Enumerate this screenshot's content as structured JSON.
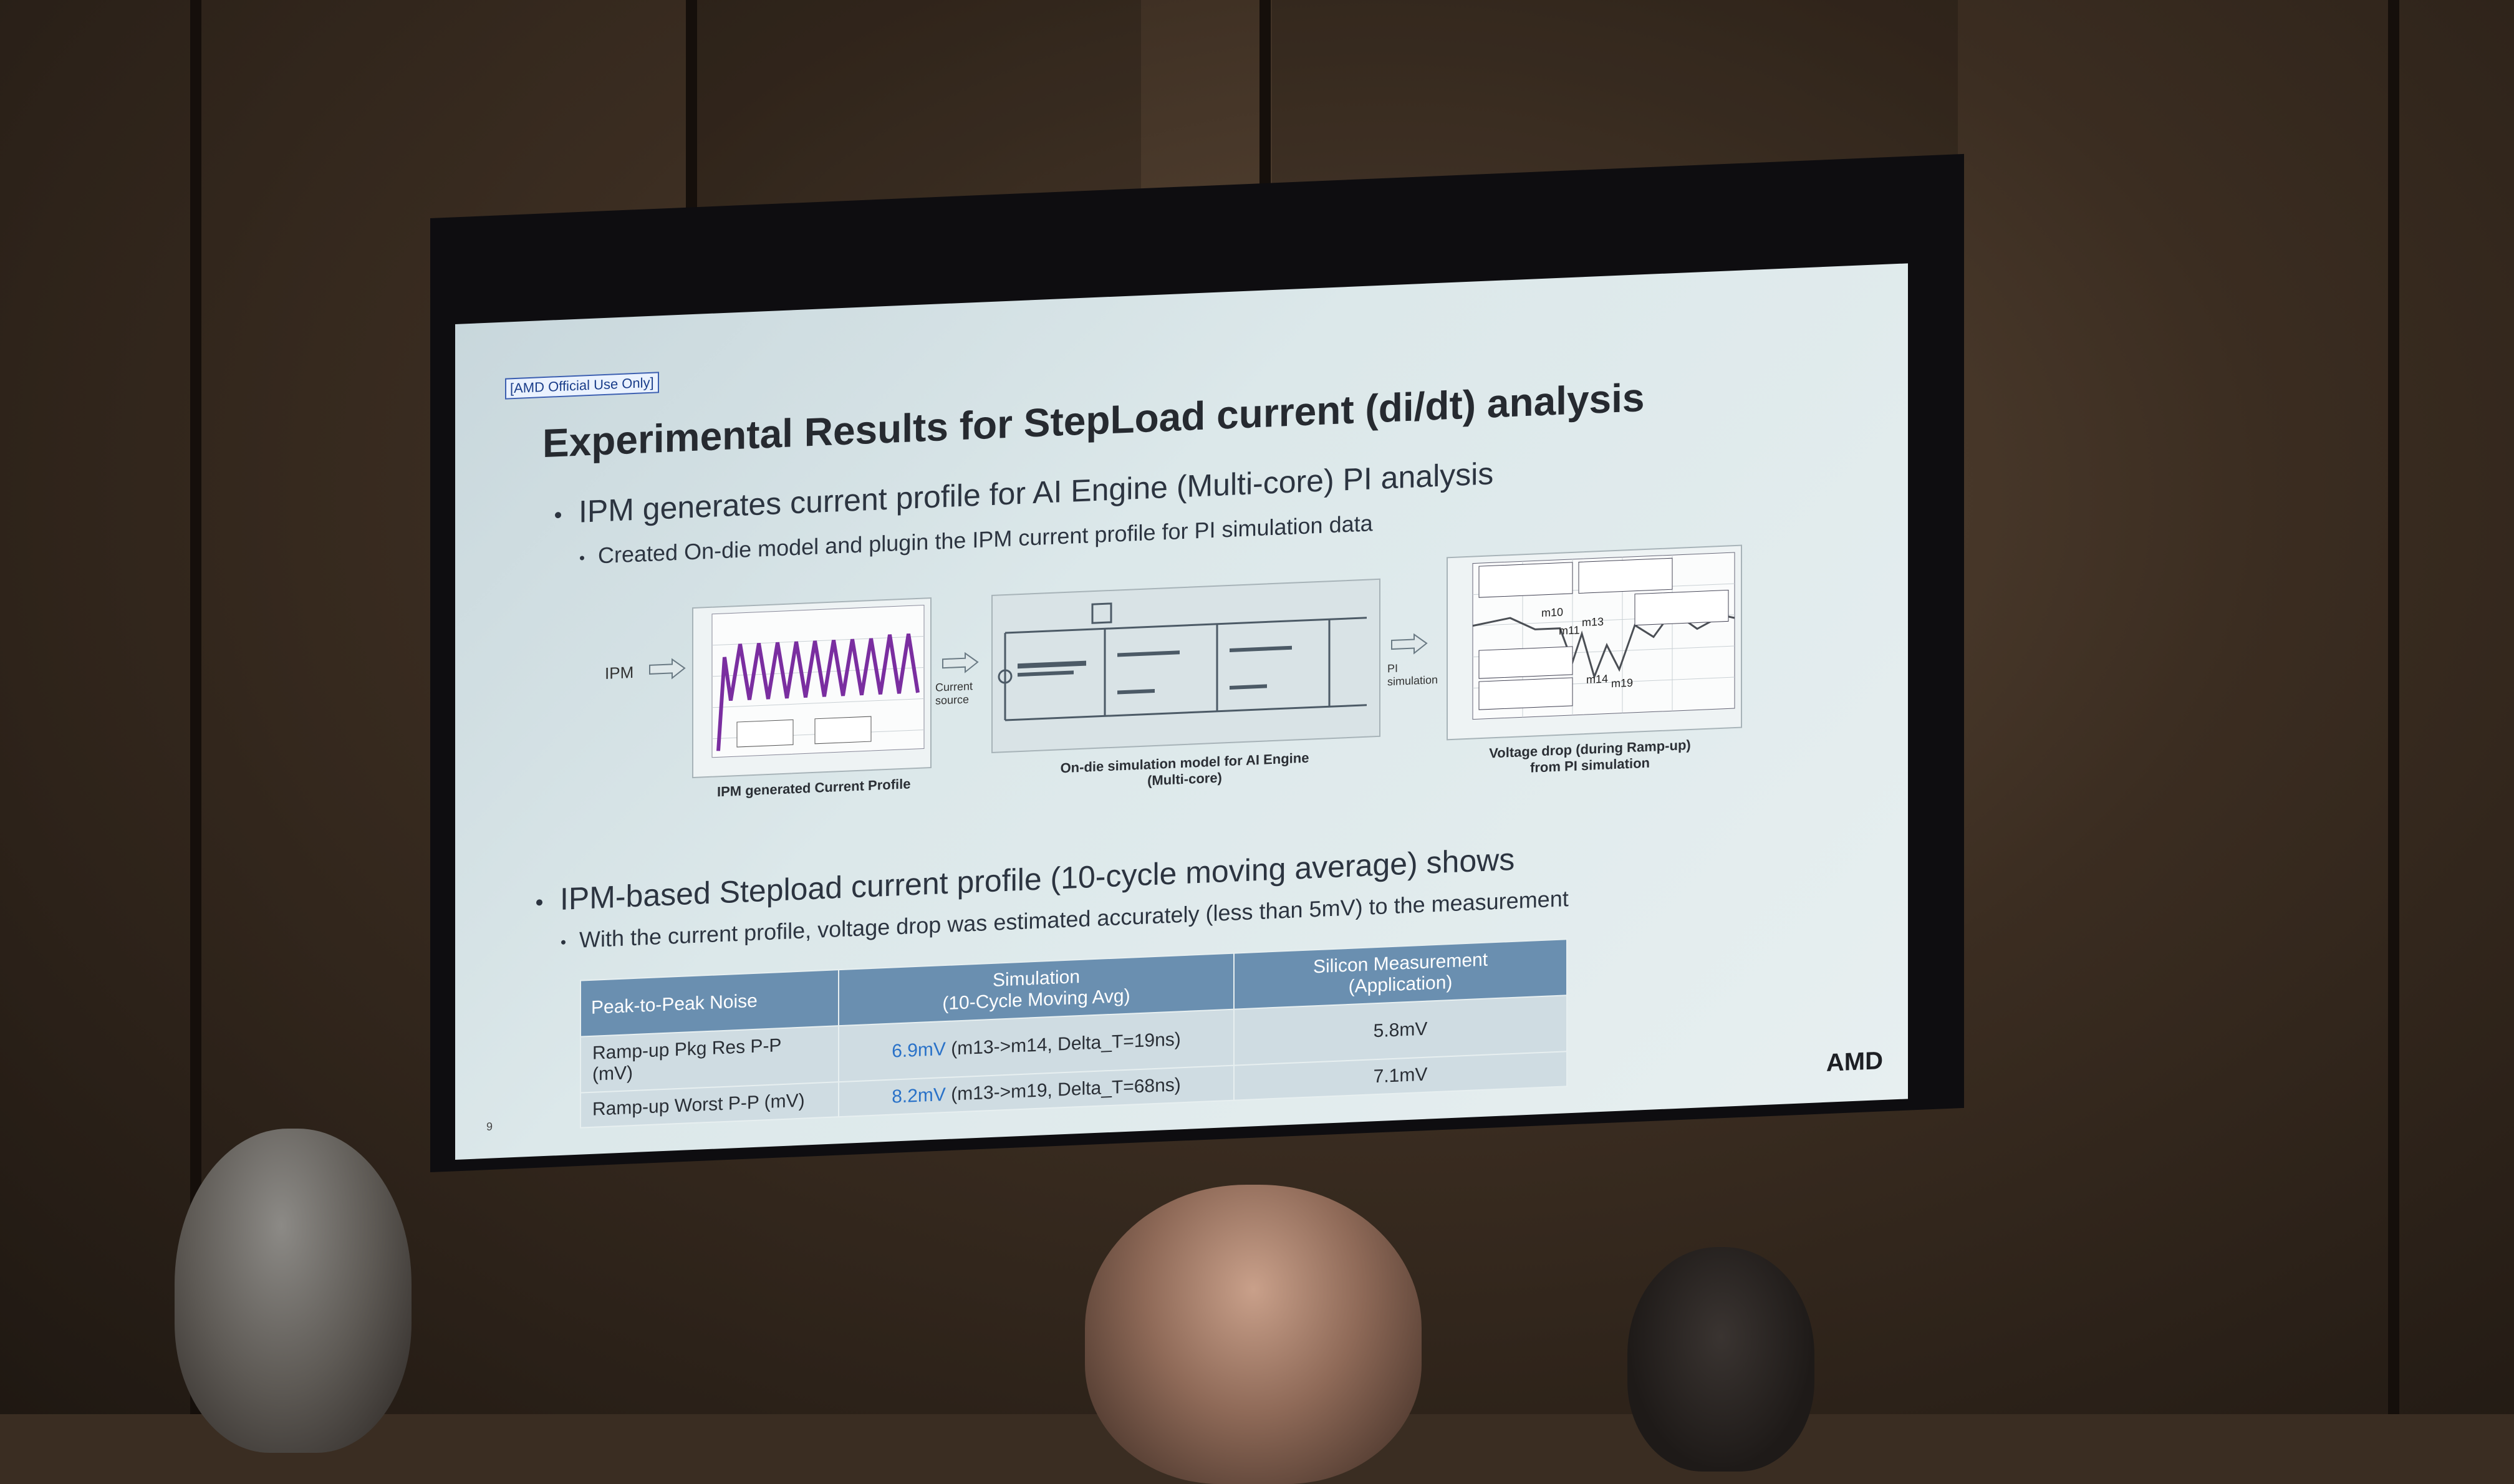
{
  "slide": {
    "official_tag": "[AMD Official Use Only]",
    "title": "Experimental Results for StepLoad current (di/dt) analysis",
    "bullet1": "IPM generates current profile for AI Engine (Multi-core) PI analysis",
    "bullet1_sub": "Created On-die model and plugin the IPM current profile for PI simulation data",
    "bullet2": "IPM-based Stepload current profile (10-cycle moving average) shows",
    "bullet2_sub": "With the current profile, voltage drop was estimated accurately (less than 5mV) to the measurement",
    "logo": "AMD",
    "page_number": "9"
  },
  "figures": {
    "ipm_label": "IPM",
    "current_source_label": "Current source",
    "pi_sim_label": "PI simulation",
    "fig1_caption": "IPM generated Current Profile",
    "fig2_caption": "On-die simulation model for AI Engine (Multi-core)",
    "fig3_caption": "Voltage drop (during Ramp-up) from PI simulation",
    "fig3_markers": [
      "m10",
      "m11",
      "m13",
      "m14",
      "m19"
    ]
  },
  "table": {
    "headers": [
      "Peak-to-Peak Noise",
      "Simulation\n(10-Cycle Moving Avg)",
      "Silicon Measurement\n(Application)"
    ],
    "rows": [
      {
        "label": "Ramp-up Pkg Res P-P (mV)",
        "sim_value": "6.9mV",
        "sim_detail": "(m13->m14, Delta_T=19ns)",
        "measured": "5.8mV"
      },
      {
        "label": "Ramp-up Worst P-P (mV)",
        "sim_value": "8.2mV",
        "sim_detail": "(m13->m19, Delta_T=68ns)",
        "measured": "7.1mV"
      }
    ]
  },
  "colors": {
    "table_header": "#6a8fb0",
    "highlight_value": "#2a72c8",
    "waveform": "#7a2ea0"
  }
}
